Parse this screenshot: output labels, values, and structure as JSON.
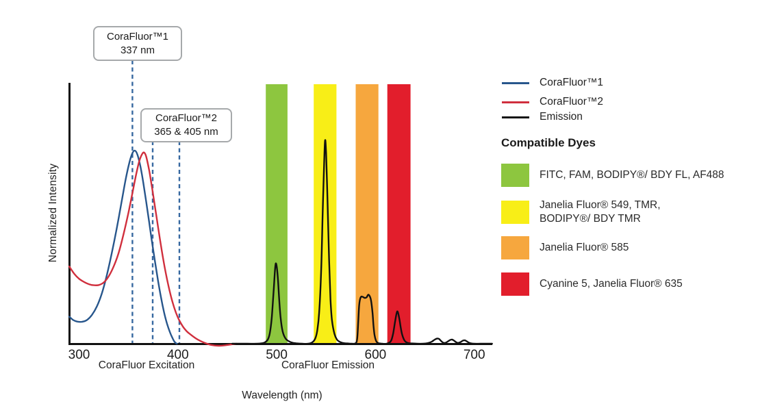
{
  "axis": {
    "ylabel": "Normalized Intensity",
    "xlabel": "Wavelength (nm)",
    "excitation_label": "CoraFluor Excitation",
    "emission_label": "CoraFluor Emission"
  },
  "annotations": [
    {
      "title": "CoraFluor™1",
      "subtitle": "337 nm"
    },
    {
      "title": "CoraFluor™2",
      "subtitle": "365 & 405 nm"
    }
  ],
  "legend": {
    "items": [
      {
        "label": "CoraFluor™1",
        "color": "#27568c"
      },
      {
        "label": "CoraFluor™2",
        "color": "#d02f3d"
      },
      {
        "label": "Emission",
        "color": "#111111"
      }
    ]
  },
  "dyes": {
    "heading": "Compatible Dyes",
    "items": [
      {
        "color": "#8dc63f",
        "lines": [
          "FITC, FAM, BODIPY®/ BDY FL, AF488"
        ]
      },
      {
        "color": "#f8ee17",
        "lines": [
          "Janelia Fluor® 549, TMR,",
          "BODIPY®/ BDY TMR"
        ]
      },
      {
        "color": "#f6a73e",
        "lines": [
          "Janelia Fluor® 585"
        ]
      },
      {
        "color": "#e21e2c",
        "lines": [
          "Cyanine 5, Janelia Fluor® 635"
        ]
      }
    ]
  },
  "chart_data": {
    "type": "line",
    "xlabel": "Wavelength (nm)",
    "ylabel": "Normalized Intensity",
    "xlim": [
      290,
      718
    ],
    "ylim": [
      0,
      1
    ],
    "x_ticks": [
      300,
      400,
      500,
      600,
      700
    ],
    "grid": false,
    "marker_color": "#3668a0",
    "dashed_markers": [
      {
        "nm": 354,
        "annotation": 0,
        "label": "337 nm"
      },
      {
        "nm": 374.5,
        "annotation": 1,
        "label": "365 nm"
      },
      {
        "nm": 401.5,
        "annotation": 1,
        "label": "405 nm"
      }
    ],
    "bands": [
      {
        "name": "FITC, FAM, BODIPY/ BDY FL, AF488 window",
        "range_nm": [
          489,
          511
        ],
        "color": "#8dc63f"
      },
      {
        "name": "Janelia Fluor 549, TMR, BODIPY/ BDY TMR window",
        "range_nm": [
          537.5,
          560.5
        ],
        "color": "#f8ee17"
      },
      {
        "name": "Janelia Fluor 585 window",
        "range_nm": [
          580,
          603
        ],
        "color": "#f6a73e"
      },
      {
        "name": "Cyanine 5, Janelia Fluor 635 window",
        "range_nm": [
          612,
          635.5
        ],
        "color": "#e21e2c"
      }
    ],
    "series": [
      {
        "name": "CoraFluor™1",
        "color": "#27568c",
        "points": [
          [
            290,
            0.105
          ],
          [
            294,
            0.092
          ],
          [
            298,
            0.086
          ],
          [
            303,
            0.085
          ],
          [
            308,
            0.092
          ],
          [
            313,
            0.112
          ],
          [
            318,
            0.145
          ],
          [
            323,
            0.195
          ],
          [
            328,
            0.265
          ],
          [
            333,
            0.35
          ],
          [
            338,
            0.445
          ],
          [
            343,
            0.55
          ],
          [
            347,
            0.635
          ],
          [
            351,
            0.705
          ],
          [
            354,
            0.74
          ],
          [
            356.5,
            0.75
          ],
          [
            359,
            0.735
          ],
          [
            362,
            0.69
          ],
          [
            365,
            0.625
          ],
          [
            368,
            0.55
          ],
          [
            371,
            0.47
          ],
          [
            374,
            0.39
          ],
          [
            377,
            0.315
          ],
          [
            380,
            0.243
          ],
          [
            383,
            0.178
          ],
          [
            386,
            0.122
          ],
          [
            389,
            0.078
          ],
          [
            392,
            0.044
          ],
          [
            394.5,
            0.022
          ],
          [
            396.5,
            0.008
          ],
          [
            398,
            0.002
          ],
          [
            399,
            0
          ]
        ]
      },
      {
        "name": "CoraFluor™2",
        "color": "#d02f3d",
        "points": [
          [
            290,
            0.3
          ],
          [
            295,
            0.272
          ],
          [
            300,
            0.252
          ],
          [
            305,
            0.24
          ],
          [
            310,
            0.231
          ],
          [
            315,
            0.227
          ],
          [
            320,
            0.228
          ],
          [
            325,
            0.238
          ],
          [
            330,
            0.262
          ],
          [
            335,
            0.3
          ],
          [
            340,
            0.352
          ],
          [
            345,
            0.425
          ],
          [
            350,
            0.51
          ],
          [
            354,
            0.585
          ],
          [
            358,
            0.662
          ],
          [
            361,
            0.71
          ],
          [
            364,
            0.738
          ],
          [
            366,
            0.742
          ],
          [
            368,
            0.726
          ],
          [
            371,
            0.672
          ],
          [
            374,
            0.602
          ],
          [
            377,
            0.527
          ],
          [
            380,
            0.452
          ],
          [
            383,
            0.378
          ],
          [
            386,
            0.31
          ],
          [
            389,
            0.251
          ],
          [
            392,
            0.199
          ],
          [
            395,
            0.156
          ],
          [
            398,
            0.121
          ],
          [
            401,
            0.094
          ],
          [
            405,
            0.067
          ],
          [
            409,
            0.048
          ],
          [
            413,
            0.035
          ],
          [
            418,
            0.021
          ],
          [
            423,
            0.01
          ],
          [
            428,
            0.002
          ],
          [
            434,
            -0.005
          ],
          [
            441,
            -0.008
          ],
          [
            448,
            -0.006
          ],
          [
            454,
            -0.003
          ],
          [
            459,
            0
          ]
        ]
      },
      {
        "name": "Emission",
        "color": "#111111",
        "points": [
          [
            455,
            0
          ],
          [
            470,
            0
          ],
          [
            480,
            0
          ],
          [
            484,
            0.001
          ],
          [
            488,
            0.005
          ],
          [
            491,
            0.016
          ],
          [
            493,
            0.04
          ],
          [
            495,
            0.1
          ],
          [
            497,
            0.21
          ],
          [
            498.5,
            0.295
          ],
          [
            499.5,
            0.31
          ],
          [
            501,
            0.265
          ],
          [
            502.5,
            0.175
          ],
          [
            504,
            0.1
          ],
          [
            506,
            0.048
          ],
          [
            509,
            0.02
          ],
          [
            513,
            0.008
          ],
          [
            517,
            0.003
          ],
          [
            521,
            0.001
          ],
          [
            526,
            0
          ],
          [
            532,
            0
          ],
          [
            536,
            0.005
          ],
          [
            539,
            0.02
          ],
          [
            541,
            0.05
          ],
          [
            543,
            0.12
          ],
          [
            545,
            0.28
          ],
          [
            546.5,
            0.5
          ],
          [
            548,
            0.7
          ],
          [
            549,
            0.79
          ],
          [
            550,
            0.74
          ],
          [
            551.5,
            0.55
          ],
          [
            553,
            0.33
          ],
          [
            554.5,
            0.17
          ],
          [
            556,
            0.09
          ],
          [
            558.5,
            0.038
          ],
          [
            561,
            0.016
          ],
          [
            564,
            0.007
          ],
          [
            568,
            0.002
          ],
          [
            572,
            0.001
          ],
          [
            576,
            0
          ],
          [
            580,
            0.002
          ],
          [
            581.5,
            0.02
          ],
          [
            582.5,
            0.08
          ],
          [
            583.5,
            0.15
          ],
          [
            585,
            0.18
          ],
          [
            587,
            0.182
          ],
          [
            589,
            0.178
          ],
          [
            591,
            0.18
          ],
          [
            592.5,
            0.19
          ],
          [
            594,
            0.186
          ],
          [
            595.5,
            0.168
          ],
          [
            597,
            0.12
          ],
          [
            598,
            0.07
          ],
          [
            599,
            0.034
          ],
          [
            600.5,
            0.012
          ],
          [
            602,
            0.004
          ],
          [
            604,
            0.001
          ],
          [
            607,
            0
          ],
          [
            611,
            0
          ],
          [
            614,
            0.004
          ],
          [
            616,
            0.013
          ],
          [
            618,
            0.042
          ],
          [
            620,
            0.09
          ],
          [
            621.5,
            0.12
          ],
          [
            622.5,
            0.124
          ],
          [
            624,
            0.1
          ],
          [
            625.5,
            0.064
          ],
          [
            627,
            0.035
          ],
          [
            629,
            0.015
          ],
          [
            631,
            0.006
          ],
          [
            633.5,
            0.002
          ],
          [
            637,
            0.001
          ],
          [
            642,
            0
          ],
          [
            648,
            0
          ],
          [
            653,
            0.002
          ],
          [
            657,
            0.008
          ],
          [
            660,
            0.016
          ],
          [
            662.5,
            0.02
          ],
          [
            664.5,
            0.018
          ],
          [
            666.5,
            0.01
          ],
          [
            668.5,
            0.004
          ],
          [
            670.5,
            0.003
          ],
          [
            673,
            0.008
          ],
          [
            675.5,
            0.014
          ],
          [
            677.5,
            0.016
          ],
          [
            679.5,
            0.012
          ],
          [
            681.5,
            0.006
          ],
          [
            683.5,
            0.003
          ],
          [
            686,
            0.006
          ],
          [
            688.5,
            0.012
          ],
          [
            690.5,
            0.013
          ],
          [
            692.5,
            0.009
          ],
          [
            694.5,
            0.004
          ],
          [
            697,
            0.001
          ],
          [
            700,
            0
          ],
          [
            706,
            0
          ],
          [
            712,
            0
          ],
          [
            718,
            0
          ]
        ]
      }
    ]
  }
}
